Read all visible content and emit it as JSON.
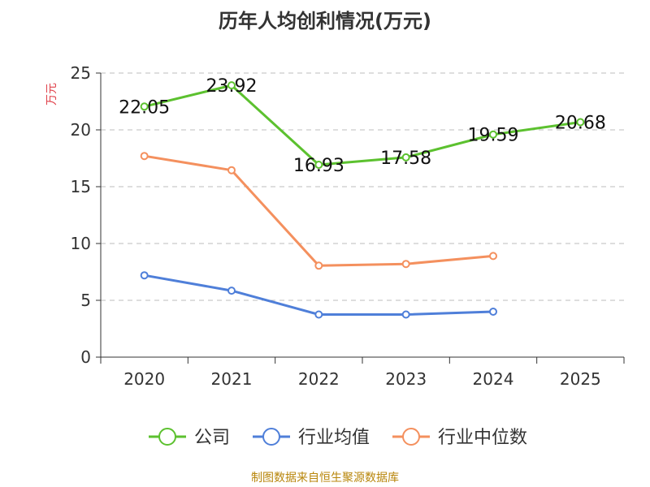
{
  "chart_data": {
    "type": "line",
    "title": "历年人均创利情况(万元)",
    "ylabel": "万元",
    "xlabel": "",
    "categories": [
      "2020",
      "2021",
      "2022",
      "2023",
      "2024",
      "2025"
    ],
    "ylim": [
      0,
      25
    ],
    "yticks": [
      0,
      5,
      10,
      15,
      20,
      25
    ],
    "grid": true,
    "legend_position": "bottom",
    "series": [
      {
        "name": "公司",
        "color": "#5cc12f",
        "values": [
          22.05,
          23.92,
          16.93,
          17.58,
          19.59,
          20.68
        ],
        "show_labels": true
      },
      {
        "name": "行业均值",
        "color": "#4f7fd9",
        "values": [
          7.2,
          5.85,
          3.75,
          3.75,
          4.0,
          null
        ],
        "show_labels": false
      },
      {
        "name": "行业中位数",
        "color": "#f4905e",
        "values": [
          17.7,
          16.45,
          8.05,
          8.2,
          8.9,
          null
        ],
        "show_labels": false
      }
    ],
    "source": "制图数据来自恒生聚源数据库"
  }
}
